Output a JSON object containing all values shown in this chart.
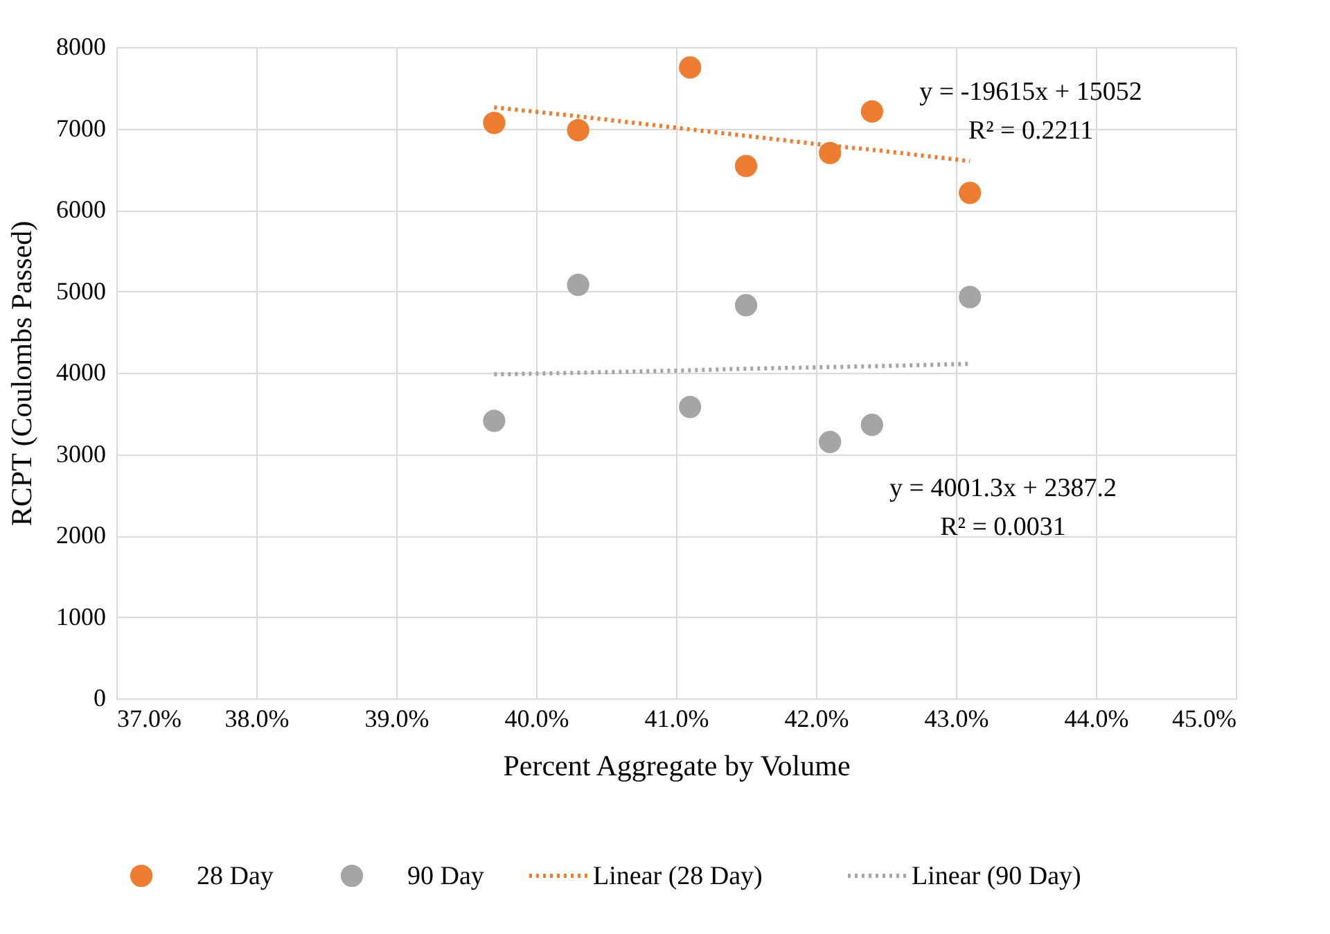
{
  "chart_data": {
    "type": "scatter",
    "xlabel": "Percent Aggregate by Volume",
    "ylabel": "RCPT (Coulombs Passed)",
    "x": [
      0.397,
      0.403,
      0.411,
      0.415,
      0.421,
      0.424,
      0.431
    ],
    "series": [
      {
        "name": "28 Day",
        "color": "#ed7d31",
        "values": [
          7070,
          6980,
          7750,
          6540,
          6700,
          7210,
          6210
        ]
      },
      {
        "name": "90 Day",
        "color": "#a5a5a5",
        "values": [
          3410,
          5080,
          3580,
          4830,
          3150,
          3360,
          4930
        ]
      },
      {
        "name": "Linear (28 Day)",
        "type": "line",
        "line_style": "dotted",
        "color": "#ed7d31",
        "values": [
          7260,
          7150,
          6990,
          6910,
          6790,
          6740,
          6600
        ],
        "marker": "none"
      },
      {
        "name": "Linear (90 Day)",
        "type": "line",
        "line_style": "dotted",
        "color": "#a5a5a5",
        "values": [
          3980,
          4000,
          4030,
          4050,
          4070,
          4080,
          4110
        ],
        "marker": "none"
      }
    ],
    "annotations": [
      "y = -19615x + 15052\nR² = 0.2211",
      "y = 4001.3x + 2387.2\nR² = 0.0031"
    ],
    "xlim": [
      0.37,
      0.45
    ],
    "xticks": [
      {
        "value": 0.37,
        "label": "37.0%"
      },
      {
        "value": 0.38,
        "label": "38.0%"
      },
      {
        "value": 0.39,
        "label": "39.0%"
      },
      {
        "value": 0.4,
        "label": "40.0%"
      },
      {
        "value": 0.41,
        "label": "41.0%"
      },
      {
        "value": 0.42,
        "label": "42.0%"
      },
      {
        "value": 0.43,
        "label": "43.0%"
      },
      {
        "value": 0.44,
        "label": "44.0%"
      },
      {
        "value": 0.45,
        "label": "45.0%"
      }
    ],
    "ylim": [
      0,
      8000
    ],
    "yticks": [
      0,
      1000,
      2000,
      3000,
      4000,
      5000,
      6000,
      7000,
      8000
    ],
    "grid": true,
    "legend": "bottom",
    "marker": "circle"
  }
}
